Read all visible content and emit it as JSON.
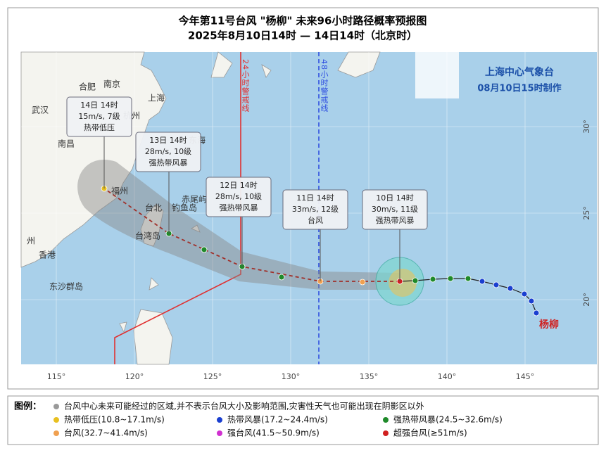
{
  "header": {
    "title": "今年第11号台风 \"杨柳\" 未来96小时路径概率预报图",
    "subtitle": "2025年8月10日14时 — 14日14时（北京时）"
  },
  "agency": {
    "name": "上海中心气象台",
    "made": "08月10日15时制作"
  },
  "warning_lines": [
    "24小时警戒线",
    "48小时警戒线"
  ],
  "typhoon_name": "杨柳",
  "forecasts": [
    {
      "time": "14日 14时",
      "wind": "15m/s, 7级",
      "category": "热带低压"
    },
    {
      "time": "13日 14时",
      "wind": "28m/s, 10级",
      "category": "强热带风暴"
    },
    {
      "time": "12日 14时",
      "wind": "28m/s, 10级",
      "category": "强热带风暴"
    },
    {
      "time": "11日 14时",
      "wind": "33m/s, 12级",
      "category": "台风"
    },
    {
      "time": "10日 14时",
      "wind": "30m/s, 11级",
      "category": "强热带风暴"
    }
  ],
  "places": [
    "合肥",
    "南京",
    "上海",
    "武汉",
    "杭州",
    "南昌",
    "福州",
    "台北",
    "钓鱼岛",
    "赤尾屿",
    "台湾岛",
    "香港",
    "州",
    "东沙群岛",
    "东海"
  ],
  "longitudes": [
    "115°",
    "120°",
    "125°",
    "130°",
    "135°",
    "140°",
    "145°"
  ],
  "latitudes": [
    "30°",
    "25°",
    "20°"
  ],
  "legend": {
    "title": "图例：",
    "items": [
      "台风中心未来可能经过的区域,并不表示台风大小及影响范围,灾害性天气也可能出现在阴影区以外",
      "热带低压(10.8~17.1m/s)",
      "热带风暴(17.2~24.4m/s)",
      "强热带风暴(24.5~32.6m/s)",
      "台风(32.7~41.4m/s)",
      "强台风(41.5~50.9m/s)",
      "超强台风(≥51m/s)"
    ]
  }
}
